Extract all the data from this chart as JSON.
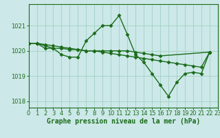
{
  "series": [
    {
      "x": [
        0,
        1,
        2,
        3,
        4,
        5,
        6,
        7,
        8,
        9,
        10,
        11,
        12,
        13,
        14,
        15,
        16,
        17,
        18,
        19,
        20,
        21,
        22
      ],
      "y": [
        1020.3,
        1020.3,
        1020.1,
        1020.1,
        1019.85,
        1019.75,
        1019.75,
        1020.4,
        1020.7,
        1021.0,
        1021.0,
        1021.4,
        1020.65,
        1019.85,
        1019.55,
        1019.1,
        1018.65,
        1018.2,
        1018.75,
        1019.1,
        1019.15,
        1019.1,
        1019.95
      ]
    },
    {
      "x": [
        0,
        1,
        2,
        3,
        4,
        5,
        6,
        7,
        8,
        9,
        10,
        11,
        12,
        13,
        14,
        15,
        16,
        17,
        18,
        19,
        20,
        21,
        22
      ],
      "y": [
        1020.3,
        1020.3,
        1020.25,
        1020.2,
        1020.15,
        1020.1,
        1020.05,
        1020.0,
        1020.0,
        1019.95,
        1019.9,
        1019.85,
        1019.8,
        1019.75,
        1019.7,
        1019.65,
        1019.6,
        1019.55,
        1019.5,
        1019.45,
        1019.4,
        1019.35,
        1019.95
      ]
    },
    {
      "x": [
        0,
        1,
        2,
        3,
        4,
        5,
        6,
        7,
        8,
        9,
        10,
        11,
        12,
        13,
        14,
        15,
        16,
        22
      ],
      "y": [
        1020.3,
        1020.3,
        1020.2,
        1020.1,
        1020.1,
        1020.05,
        1020.05,
        1020.0,
        1020.0,
        1020.0,
        1020.0,
        1020.0,
        1020.0,
        1019.95,
        1019.9,
        1019.85,
        1019.8,
        1019.95
      ]
    }
  ],
  "line_color": "#1a6b1a",
  "marker": "D",
  "markersize": 2.5,
  "linewidth": 1.0,
  "xlabel": "Graphe pression niveau de la mer (hPa)",
  "xlim": [
    0,
    23
  ],
  "ylim": [
    1017.75,
    1021.85
  ],
  "yticks": [
    1018,
    1019,
    1020,
    1021
  ],
  "xticks": [
    0,
    1,
    2,
    3,
    4,
    5,
    6,
    7,
    8,
    9,
    10,
    11,
    12,
    13,
    14,
    15,
    16,
    17,
    18,
    19,
    20,
    21,
    22,
    23
  ],
  "bg_color": "#cce8e8",
  "grid_color": "#99ccbb",
  "tick_color": "#1a6b1a",
  "label_color": "#1a6b1a",
  "xlabel_fontsize": 7,
  "tick_fontsize": 6
}
